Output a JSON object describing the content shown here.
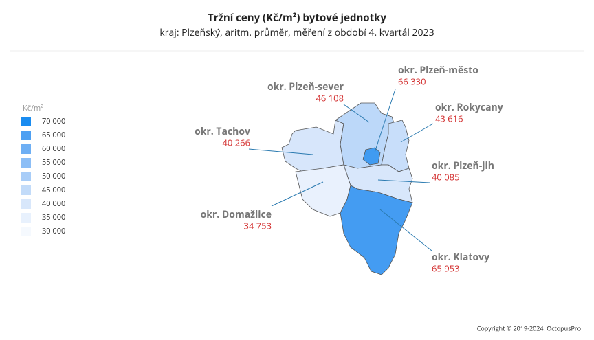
{
  "title": "Tržní ceny  (Kč/m²) bytové jednotky",
  "subtitle": "kraj: Plzeňský,  aritm. průměr,  měření z období 4. kvartál 2023",
  "legend": {
    "unit": "Kč/m²",
    "items": [
      {
        "value": 70000,
        "label": "70 000",
        "color": "#1a8cf0"
      },
      {
        "value": 65000,
        "label": "65 000",
        "color": "#4ea0f2"
      },
      {
        "value": 60000,
        "label": "60 000",
        "color": "#6eaff4"
      },
      {
        "value": 55000,
        "label": "55 000",
        "color": "#8cbef6"
      },
      {
        "value": 50000,
        "label": "50 000",
        "color": "#a8cdf8"
      },
      {
        "value": 45000,
        "label": "45 000",
        "color": "#c2dbf9"
      },
      {
        "value": 40000,
        "label": "40 000",
        "color": "#d8e7fb"
      },
      {
        "value": 35000,
        "label": "35 000",
        "color": "#e8f1fd"
      },
      {
        "value": 30000,
        "label": "30 000",
        "color": "#f5f9fe"
      }
    ]
  },
  "regions": [
    {
      "name": "okr. Tachov",
      "value": 40266,
      "label": "40 266"
    },
    {
      "name": "okr. Plzeň-sever",
      "value": 46108,
      "label": "46 108"
    },
    {
      "name": "okr. Rokycany",
      "value": 43616,
      "label": "43 616"
    },
    {
      "name": "okr. Plzeň-jih",
      "value": 40085,
      "label": "40 085"
    },
    {
      "name": "okr. Domažlice",
      "value": 34753,
      "label": "34 753"
    },
    {
      "name": "okr. Klatovy",
      "value": 65953,
      "label": "65 953"
    },
    {
      "name": "okr. Plzeň-město",
      "value": 66330,
      "label": "66 330"
    }
  ],
  "copyright": "Copyright © 2019-2024, OctopusPro"
}
